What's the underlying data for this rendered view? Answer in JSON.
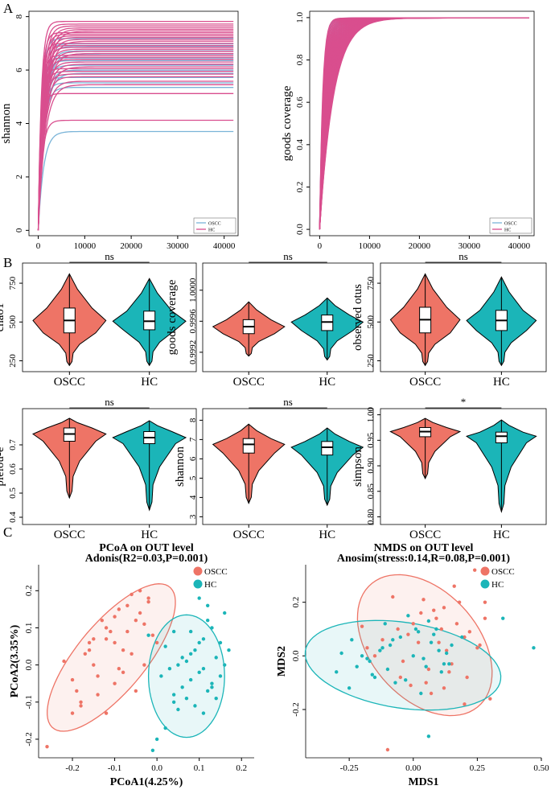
{
  "colors": {
    "oscc": "#EE7466",
    "hc": "#1BB5B8",
    "hcLine": "#D94E8E",
    "osccLine": "#7AB4D8"
  },
  "panels": {
    "a": "A",
    "b": "B",
    "c": "C"
  },
  "chart_data": [
    {
      "type": "line",
      "id": "A1",
      "title": "",
      "xlabel": "",
      "ylabel": "shannon",
      "xlim": [
        -2000,
        43000
      ],
      "ylim": [
        -0.2,
        8.2
      ],
      "xticks": [
        0,
        10000,
        20000,
        30000,
        40000
      ],
      "yticks": [
        0,
        2,
        4,
        6,
        8
      ],
      "legend": [
        {
          "name": "OSCC",
          "color": "#7AB4D8"
        },
        {
          "name": "HC",
          "color": "#D94E8E"
        }
      ],
      "legend_position": "bottom-right",
      "series_plateaus_HC": [
        7.82,
        7.72,
        7.65,
        7.58,
        7.52,
        7.46,
        7.4,
        7.34,
        7.28,
        7.22,
        7.15,
        7.08,
        7.0,
        6.92,
        6.85,
        6.78,
        6.7,
        6.62,
        6.55,
        6.48,
        6.4,
        6.3,
        6.22,
        6.12,
        6.05,
        5.95,
        5.85,
        5.75,
        5.58,
        5.45,
        5.12,
        4.12
      ],
      "series_plateaus_OSCC": [
        7.18,
        6.98,
        6.88,
        6.72,
        6.6,
        6.45,
        6.35,
        6.18,
        6.0,
        5.88,
        5.72,
        5.52,
        5.35,
        3.7
      ]
    },
    {
      "type": "line",
      "id": "A2",
      "title": "",
      "xlabel": "",
      "ylabel": "goods coverage",
      "xlim": [
        -2000,
        43000
      ],
      "ylim": [
        -0.03,
        1.03
      ],
      "xticks": [
        0,
        10000,
        20000,
        30000,
        40000
      ],
      "yticks": [
        0.0,
        0.2,
        0.4,
        0.6,
        0.8,
        1.0
      ],
      "legend": [
        {
          "name": "OSCC",
          "color": "#7AB4D8"
        },
        {
          "name": "HC",
          "color": "#D94E8E"
        }
      ],
      "legend_position": "bottom-right"
    },
    {
      "type": "violin",
      "id": "B1",
      "categories": [
        "OSCC",
        "HC"
      ],
      "ylabel": "chao1",
      "yticks": [
        250,
        500,
        750
      ],
      "ylim": [
        180,
        880
      ],
      "significance": "ns",
      "stats": [
        {
          "group": "OSCC",
          "min": 220,
          "q1": 430,
          "median": 510,
          "q3": 590,
          "max": 810
        },
        {
          "group": "HC",
          "min": 220,
          "q1": 450,
          "median": 505,
          "q3": 570,
          "max": 780
        }
      ]
    },
    {
      "type": "violin",
      "id": "B2",
      "categories": [
        "OSCC",
        "HC"
      ],
      "ylabel": "goods coverage",
      "yticks": [
        "0.9992",
        "0.9996",
        "1.0000"
      ],
      "ylim": [
        0.99895,
        1.00035
      ],
      "significance": "ns",
      "stats": [
        {
          "group": "OSCC",
          "min": 0.99915,
          "q1": 0.99944,
          "median": 0.99953,
          "q3": 0.99962,
          "max": 0.99985
        },
        {
          "group": "HC",
          "min": 0.9991,
          "q1": 0.99948,
          "median": 0.99959,
          "q3": 0.99968,
          "max": 0.9999
        }
      ]
    },
    {
      "type": "violin",
      "id": "B3",
      "categories": [
        "OSCC",
        "HC"
      ],
      "ylabel": "observed otus",
      "yticks": [
        250,
        500,
        750
      ],
      "ylim": [
        180,
        880
      ],
      "significance": "ns",
      "stats": [
        {
          "group": "OSCC",
          "min": 220,
          "q1": 430,
          "median": 515,
          "q3": 595,
          "max": 810
        },
        {
          "group": "HC",
          "min": 220,
          "q1": 445,
          "median": 510,
          "q3": 575,
          "max": 790
        }
      ]
    },
    {
      "type": "violin",
      "id": "B4",
      "categories": [
        "OSCC",
        "HC"
      ],
      "ylabel": "pielou-e",
      "yticks": [
        0.4,
        0.5,
        0.6,
        0.7
      ],
      "ylim": [
        0.37,
        0.85
      ],
      "significance": "ns",
      "stats": [
        {
          "group": "OSCC",
          "min": 0.48,
          "q1": 0.715,
          "median": 0.745,
          "q3": 0.77,
          "max": 0.81
        },
        {
          "group": "HC",
          "min": 0.43,
          "q1": 0.705,
          "median": 0.73,
          "q3": 0.755,
          "max": 0.8
        }
      ]
    },
    {
      "type": "violin",
      "id": "B5",
      "categories": [
        "OSCC",
        "HC"
      ],
      "ylabel": "shannon",
      "yticks": [
        3,
        4,
        5,
        6,
        7,
        8
      ],
      "ylim": [
        2.6,
        8.6
      ],
      "significance": "ns",
      "stats": [
        {
          "group": "OSCC",
          "min": 3.7,
          "q1": 6.3,
          "median": 6.75,
          "q3": 7.05,
          "max": 7.8
        },
        {
          "group": "HC",
          "min": 3.6,
          "q1": 6.2,
          "median": 6.6,
          "q3": 6.9,
          "max": 7.6
        }
      ]
    },
    {
      "type": "violin",
      "id": "B6",
      "categories": [
        "OSCC",
        "HC"
      ],
      "ylabel": "simpson",
      "yticks": [
        "0.80",
        "0.85",
        "0.90",
        "0.95",
        "1.00"
      ],
      "ylim": [
        0.785,
        1.012
      ],
      "significance": "*",
      "stats": [
        {
          "group": "OSCC",
          "min": 0.875,
          "q1": 0.957,
          "median": 0.967,
          "q3": 0.975,
          "max": 0.993
        },
        {
          "group": "HC",
          "min": 0.81,
          "q1": 0.945,
          "median": 0.958,
          "q3": 0.966,
          "max": 0.99
        }
      ]
    },
    {
      "type": "scatter",
      "id": "C1",
      "title": "PCoA on OUT level",
      "subtitle": "Adonis(R2=0.03,P=0.001)",
      "xlabel": "PCoA1(4.25%)",
      "ylabel": "PCoA2(3.35%)",
      "xlim": [
        -0.28,
        0.23
      ],
      "ylim": [
        -0.25,
        0.27
      ],
      "xticks": [
        "-0.2",
        "-0.1",
        "0.0",
        "0.1",
        "0.2"
      ],
      "yticks": [
        "-0.2",
        "-0.1",
        "0.0",
        "0.1",
        "0.2"
      ],
      "legend": [
        {
          "name": "OSCC",
          "color": "#EE7466"
        },
        {
          "name": "HC",
          "color": "#1BB5B8"
        }
      ],
      "ellipses": [
        {
          "group": "OSCC",
          "cx": -0.108,
          "cy": 0.02,
          "rx": 0.235,
          "ry": 0.085,
          "angle_deg": 55
        },
        {
          "group": "HC",
          "cx": 0.07,
          "cy": -0.03,
          "rx": 0.165,
          "ry": 0.09,
          "angle_deg": 90
        }
      ],
      "series": [
        {
          "name": "OSCC",
          "x": [
            -0.26,
            -0.2,
            -0.18,
            -0.12,
            -0.14,
            -0.1,
            -0.05,
            -0.08,
            -0.03,
            -0.15,
            -0.17,
            -0.22,
            -0.2,
            -0.16,
            -0.12,
            -0.1,
            -0.07,
            -0.05,
            -0.13,
            -0.09,
            -0.06,
            -0.04,
            -0.02,
            -0.11,
            -0.14,
            -0.18,
            -0.08,
            -0.06,
            -0.03,
            -0.01,
            0.0,
            -0.1,
            -0.07,
            -0.15,
            -0.12,
            -0.09,
            -0.19,
            -0.04,
            -0.02,
            -0.16
          ],
          "y": [
            -0.22,
            -0.13,
            -0.11,
            -0.13,
            -0.08,
            -0.05,
            -0.07,
            -0.02,
            0.0,
            0.0,
            0.03,
            0.01,
            -0.04,
            0.06,
            0.07,
            0.06,
            0.09,
            0.12,
            0.12,
            0.15,
            0.19,
            0.2,
            0.17,
            0.09,
            -0.03,
            -0.1,
            0.04,
            0.03,
            0.11,
            0.08,
            0.06,
            0.13,
            0.16,
            0.07,
            0.1,
            -0.01,
            -0.07,
            0.14,
            0.18,
            0.04
          ]
        },
        {
          "name": "HC",
          "x": [
            0.0,
            0.02,
            0.05,
            0.04,
            0.12,
            0.13,
            0.15,
            0.16,
            0.14,
            0.1,
            0.08,
            0.07,
            0.09,
            0.11,
            0.13,
            0.06,
            0.03,
            0.02,
            0.15,
            0.16,
            0.12,
            0.1,
            0.08,
            0.05,
            0.04,
            0.07,
            0.09,
            0.11,
            0.14,
            -0.01,
            -0.02,
            0.17,
            0.06,
            0.12,
            0.1,
            0.01,
            0.13,
            0.08,
            0.04,
            0.11
          ],
          "y": [
            -0.2,
            -0.17,
            -0.12,
            -0.1,
            -0.07,
            -0.05,
            -0.03,
            0.0,
            0.02,
            -0.02,
            -0.04,
            0.01,
            0.04,
            0.07,
            0.1,
            -0.06,
            -0.01,
            0.05,
            0.06,
            0.14,
            0.16,
            0.18,
            0.03,
            0.0,
            -0.08,
            -0.09,
            -0.11,
            -0.13,
            -0.09,
            -0.23,
            0.08,
            0.04,
            0.02,
            0.12,
            0.06,
            -0.03,
            -0.06,
            0.09,
            0.09,
            -0.01
          ]
        }
      ]
    },
    {
      "type": "scatter",
      "id": "C2",
      "title": "NMDS on OUT level",
      "subtitle": "Anosim(stress:0.14,R=0.08,P=0.001)",
      "xlabel": "MDS1",
      "ylabel": "MDS2",
      "xlim": [
        -0.42,
        0.5
      ],
      "ylim": [
        -0.38,
        0.34
      ],
      "xticks": [
        "-0.25",
        "0.00",
        "0.25",
        "0.50"
      ],
      "yticks": [
        "-0.2",
        "0.0",
        "0.2"
      ],
      "legend": [
        {
          "name": "OSCC",
          "color": "#EE7466"
        },
        {
          "name": "HC",
          "color": "#1BB5B8"
        }
      ],
      "ellipses": [
        {
          "group": "OSCC",
          "cx": 0.045,
          "cy": 0.04,
          "rx": 0.31,
          "ry": 0.205,
          "angle_deg": -45
        },
        {
          "group": "HC",
          "cx": -0.04,
          "cy": -0.035,
          "rx": 0.385,
          "ry": 0.16,
          "angle_deg": -8
        }
      ],
      "series": [
        {
          "name": "OSCC",
          "x": [
            -0.1,
            0.2,
            0.12,
            0.3,
            -0.05,
            0.05,
            0.15,
            -0.15,
            0.1,
            0.25,
            0.22,
            0.0,
            -0.2,
            0.08,
            0.18,
            0.28,
            -0.08,
            0.03,
            -0.02,
            0.13,
            0.06,
            -0.12,
            0.16,
            0.24,
            0.11,
            -0.04,
            0.02,
            0.09,
            0.2,
            -0.18,
            0.26,
            0.14,
            0.04,
            -0.06,
            0.07,
            0.17,
            -0.01,
            0.21,
            0.12,
            0.28
          ],
          "y": [
            -0.35,
            -0.18,
            -0.12,
            -0.16,
            -0.08,
            -0.1,
            -0.03,
            0.0,
            0.05,
            0.03,
            0.09,
            0.12,
            0.11,
            0.17,
            0.2,
            0.14,
            0.22,
            0.16,
            0.08,
            0.02,
            -0.05,
            0.06,
            0.26,
            0.32,
            0.1,
            -0.02,
            0.05,
            0.14,
            0.07,
            0.03,
            0.04,
            -0.06,
            0.21,
            0.1,
            -0.14,
            0.12,
            -0.11,
            -0.08,
            0.18,
            0.2
          ]
        },
        {
          "name": "HC",
          "x": [
            -0.3,
            -0.28,
            -0.25,
            -0.22,
            -0.2,
            -0.17,
            -0.15,
            -0.12,
            -0.1,
            -0.08,
            -0.05,
            -0.03,
            0.0,
            0.02,
            0.05,
            0.07,
            0.1,
            0.12,
            0.15,
            0.35,
            0.47,
            -0.13,
            -0.07,
            0.04,
            0.06,
            0.09,
            -0.02,
            0.11,
            -0.18,
            -0.24,
            0.08,
            0.03,
            -0.09,
            0.01,
            0.13,
            -0.16,
            0.06,
            0.14,
            0.19,
            -0.11
          ],
          "y": [
            -0.06,
            0.01,
            -0.12,
            -0.04,
            0.0,
            -0.02,
            -0.08,
            0.03,
            -0.05,
            0.06,
            0.07,
            -0.09,
            0.0,
            0.09,
            -0.04,
            0.05,
            0.02,
            -0.03,
            0.04,
            0.14,
            0.03,
            0.02,
            -0.1,
            -0.01,
            0.13,
            0.1,
            0.15,
            -0.06,
            -0.01,
            0.06,
            0.08,
            -0.14,
            0.04,
            0.1,
            0.01,
            -0.07,
            -0.3,
            -0.03,
            0.07,
            0.12
          ]
        }
      ]
    }
  ]
}
